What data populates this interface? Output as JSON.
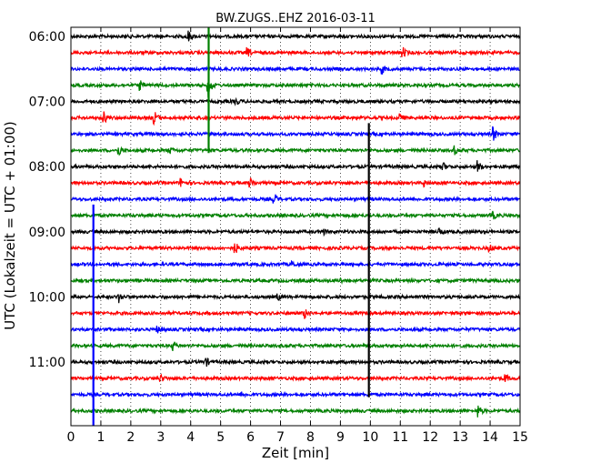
{
  "chart_data": {
    "type": "line",
    "title": "BW.ZUGS..EHZ 2016-03-11",
    "xlabel": "Zeit  [min]",
    "ylabel": "UTC (Lokalzeit = UTC + 01:00)",
    "xlim": [
      0,
      15
    ],
    "x_ticks": [
      0,
      1,
      2,
      3,
      4,
      5,
      6,
      7,
      8,
      9,
      10,
      11,
      12,
      13,
      14,
      15
    ],
    "x_tick_labels": [
      "0",
      "1",
      "2",
      "3",
      "4",
      "5",
      "6",
      "7",
      "8",
      "9",
      "10",
      "11",
      "12",
      "13",
      "14",
      "15"
    ],
    "grid": true,
    "trace_interval_min": 15,
    "time_start": "06:00",
    "y_tick_labels": [
      "06:00",
      "07:00",
      "08:00",
      "09:00",
      "10:00",
      "11:00"
    ],
    "trace_colors": [
      "#000000",
      "#ff0000",
      "#0000ff",
      "#008000"
    ],
    "traces": [
      {
        "start": "06:00",
        "color": "#000000",
        "events": [
          {
            "t": 3.9,
            "amp": 0.8
          }
        ]
      },
      {
        "start": "06:15",
        "color": "#ff0000",
        "events": [
          {
            "t": 5.9,
            "amp": 0.5
          },
          {
            "t": 11.1,
            "amp": 0.5
          }
        ]
      },
      {
        "start": "06:30",
        "color": "#0000ff",
        "events": [
          {
            "t": 10.4,
            "amp": 0.5
          }
        ]
      },
      {
        "start": "06:45",
        "color": "#008000",
        "events": [
          {
            "t": 2.3,
            "amp": 0.6
          },
          {
            "t": 4.6,
            "amp": 1.4
          }
        ]
      },
      {
        "start": "07:00",
        "color": "#000000",
        "events": [
          {
            "t": 5.5,
            "amp": 0.4
          }
        ]
      },
      {
        "start": "07:15",
        "color": "#ff0000",
        "events": [
          {
            "t": 1.1,
            "amp": 0.7
          },
          {
            "t": 2.8,
            "amp": 0.7
          },
          {
            "t": 11.0,
            "amp": 0.4
          }
        ]
      },
      {
        "start": "07:30",
        "color": "#0000ff",
        "events": [
          {
            "t": 14.1,
            "amp": 0.9
          }
        ]
      },
      {
        "start": "07:45",
        "color": "#008000",
        "events": [
          {
            "t": 1.6,
            "amp": 0.6
          },
          {
            "t": 3.3,
            "amp": 0.4
          },
          {
            "t": 12.8,
            "amp": 0.5
          }
        ]
      },
      {
        "start": "08:00",
        "color": "#000000",
        "events": [
          {
            "t": 12.4,
            "amp": 0.6
          },
          {
            "t": 13.6,
            "amp": 0.7
          }
        ]
      },
      {
        "start": "08:15",
        "color": "#ff0000",
        "events": [
          {
            "t": 3.7,
            "amp": 0.5
          },
          {
            "t": 6.0,
            "amp": 0.5
          },
          {
            "t": 11.8,
            "amp": 0.4
          }
        ]
      },
      {
        "start": "08:30",
        "color": "#0000ff",
        "events": [
          {
            "t": 6.8,
            "amp": 0.6
          }
        ]
      },
      {
        "start": "08:45",
        "color": "#008000",
        "events": [
          {
            "t": 14.1,
            "amp": 0.4
          }
        ]
      },
      {
        "start": "09:00",
        "color": "#000000",
        "events": [
          {
            "t": 8.4,
            "amp": 0.4
          },
          {
            "t": 12.3,
            "amp": 0.4
          }
        ]
      },
      {
        "start": "09:15",
        "color": "#ff0000",
        "events": [
          {
            "t": 5.5,
            "amp": 0.6
          },
          {
            "t": 14.0,
            "amp": 0.4
          }
        ]
      },
      {
        "start": "09:30",
        "color": "#0000ff",
        "events": [
          {
            "t": 7.4,
            "amp": 0.3
          }
        ]
      },
      {
        "start": "09:45",
        "color": "#008000",
        "events": [
          {
            "t": 9.0,
            "amp": 0.3
          }
        ]
      },
      {
        "start": "10:00",
        "color": "#000000",
        "events": [
          {
            "t": 1.6,
            "amp": 0.6
          },
          {
            "t": 6.9,
            "amp": 0.4
          }
        ]
      },
      {
        "start": "10:15",
        "color": "#ff0000",
        "events": [
          {
            "t": 7.8,
            "amp": 0.6
          }
        ]
      },
      {
        "start": "10:30",
        "color": "#0000ff",
        "events": [
          {
            "t": 2.9,
            "amp": 0.3
          }
        ]
      },
      {
        "start": "10:45",
        "color": "#008000",
        "events": [
          {
            "t": 3.4,
            "amp": 0.5
          }
        ]
      },
      {
        "start": "11:00",
        "color": "#000000",
        "events": [
          {
            "t": 4.5,
            "amp": 0.6
          }
        ]
      },
      {
        "start": "11:15",
        "color": "#ff0000",
        "events": [
          {
            "t": 3.0,
            "amp": 0.4
          },
          {
            "t": 14.5,
            "amp": 0.5
          }
        ]
      },
      {
        "start": "11:30",
        "color": "#0000ff",
        "events": [
          {
            "t": 5.7,
            "amp": 0.3
          }
        ]
      },
      {
        "start": "11:45",
        "color": "#008000",
        "events": [
          {
            "t": 13.6,
            "amp": 0.7
          }
        ]
      }
    ],
    "glitches": [
      {
        "color": "#008000",
        "t": 4.6,
        "from": "06:00",
        "to": "07:45"
      },
      {
        "color": "#000000",
        "t": 9.95,
        "from": "07:30",
        "to": "11:30"
      },
      {
        "color": "#0000ff",
        "t": 0.75,
        "from": "08:45",
        "to": "12:00"
      }
    ]
  }
}
